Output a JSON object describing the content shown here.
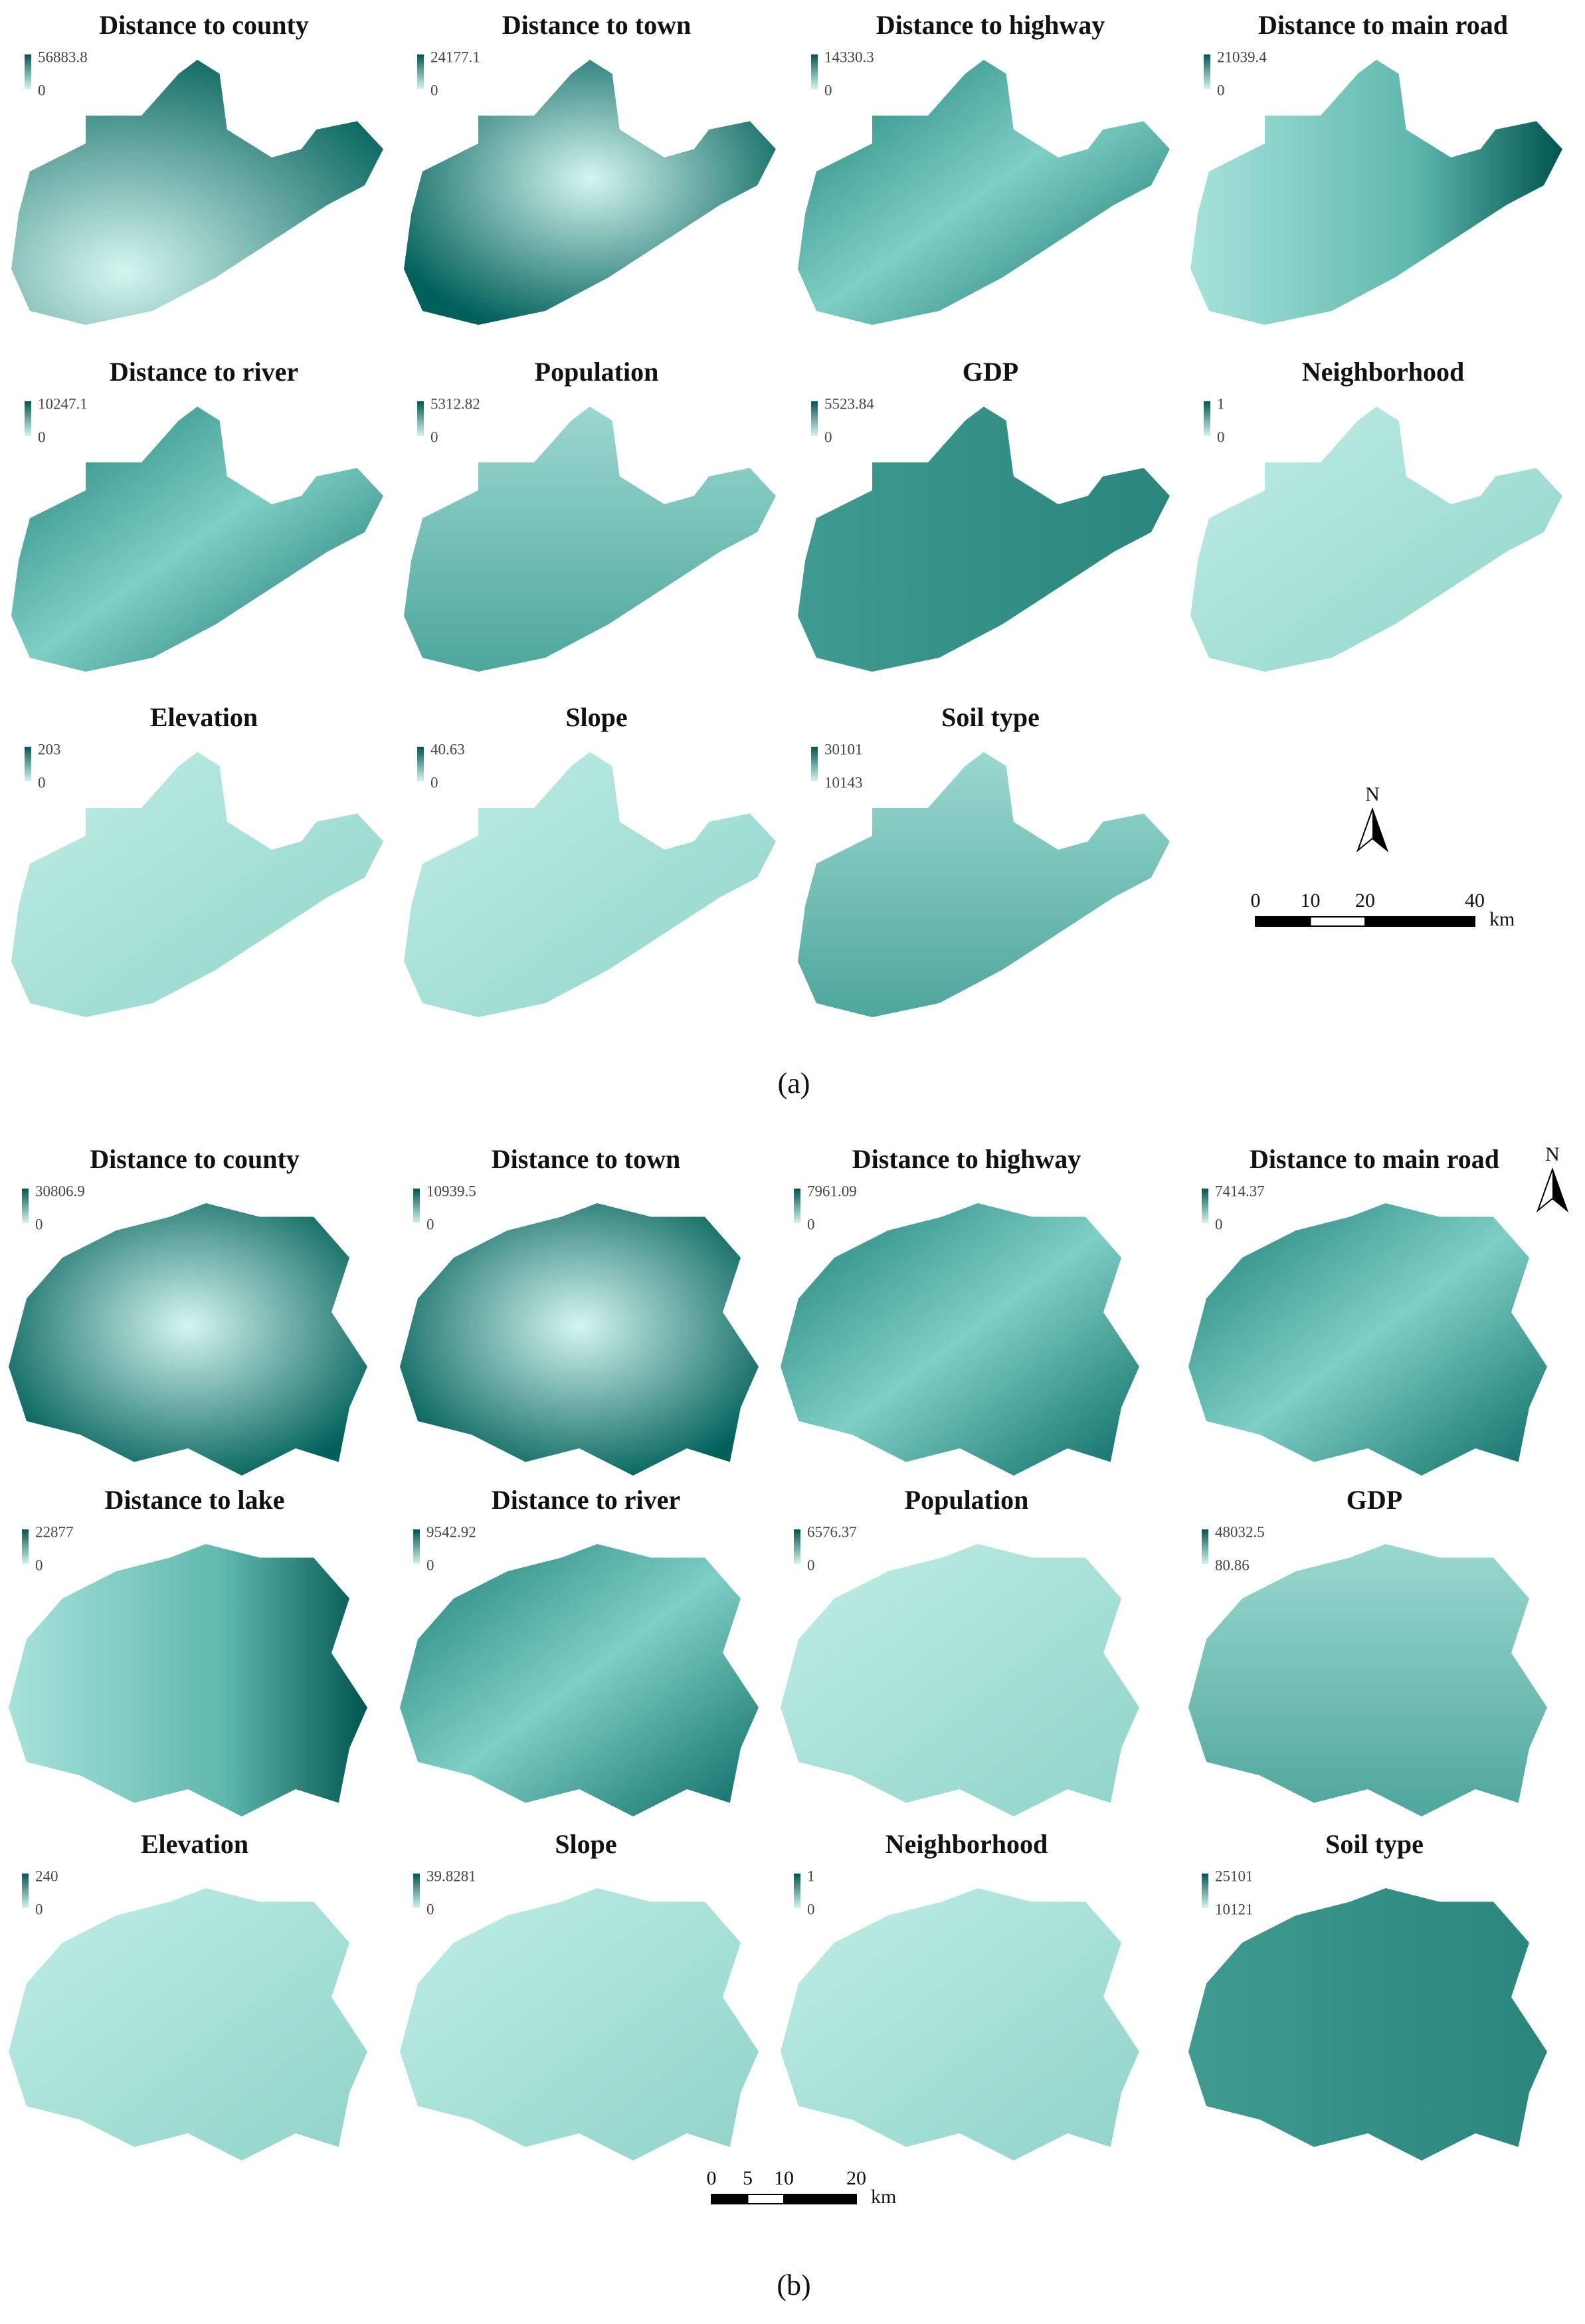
{
  "panels": [
    {
      "label": "(a)",
      "north": "N",
      "scale_bar": {
        "ticks": [
          0,
          10,
          20,
          40
        ],
        "unit": "km"
      },
      "maps": [
        {
          "title": "Distance to county",
          "max": 56883.8,
          "min": 0
        },
        {
          "title": "Distance to town",
          "max": 24177.1,
          "min": 0
        },
        {
          "title": "Distance to highway",
          "max": 14330.3,
          "min": 0
        },
        {
          "title": "Distance to main road",
          "max": 21039.4,
          "min": 0
        },
        {
          "title": "Distance to river",
          "max": 10247.1,
          "min": 0
        },
        {
          "title": "Population",
          "max": 5312.82,
          "min": 0
        },
        {
          "title": "GDP",
          "max": 5523.84,
          "min": 0
        },
        {
          "title": "Neighborhood",
          "max": 1,
          "min": 0
        },
        {
          "title": "Elevation",
          "max": 203,
          "min": 0
        },
        {
          "title": "Slope",
          "max": 40.63,
          "min": 0
        },
        {
          "title": "Soil type",
          "max": 30101,
          "min": 10143
        }
      ]
    },
    {
      "label": "(b)",
      "north": "N",
      "scale_bar": {
        "ticks": [
          0,
          5,
          10,
          20
        ],
        "unit": "km"
      },
      "maps": [
        {
          "title": "Distance to county",
          "max": 30806.9,
          "min": 0
        },
        {
          "title": "Distance to town",
          "max": 10939.5,
          "min": 0
        },
        {
          "title": "Distance to highway",
          "max": 7961.09,
          "min": 0
        },
        {
          "title": "Distance to main road",
          "max": 7414.37,
          "min": 0
        },
        {
          "title": "Distance to lake",
          "max": 22877,
          "min": 0
        },
        {
          "title": "Distance to river",
          "max": 9542.92,
          "min": 0
        },
        {
          "title": "Population",
          "max": 6576.37,
          "min": 0
        },
        {
          "title": "GDP",
          "max": 48032.5,
          "min": 80.86
        },
        {
          "title": "Elevation",
          "max": 240,
          "min": 0
        },
        {
          "title": "Slope",
          "max": 39.8281,
          "min": 0
        },
        {
          "title": "Neighborhood",
          "max": 1,
          "min": 0
        },
        {
          "title": "Soil type",
          "max": 25101,
          "min": 10121
        }
      ]
    }
  ]
}
